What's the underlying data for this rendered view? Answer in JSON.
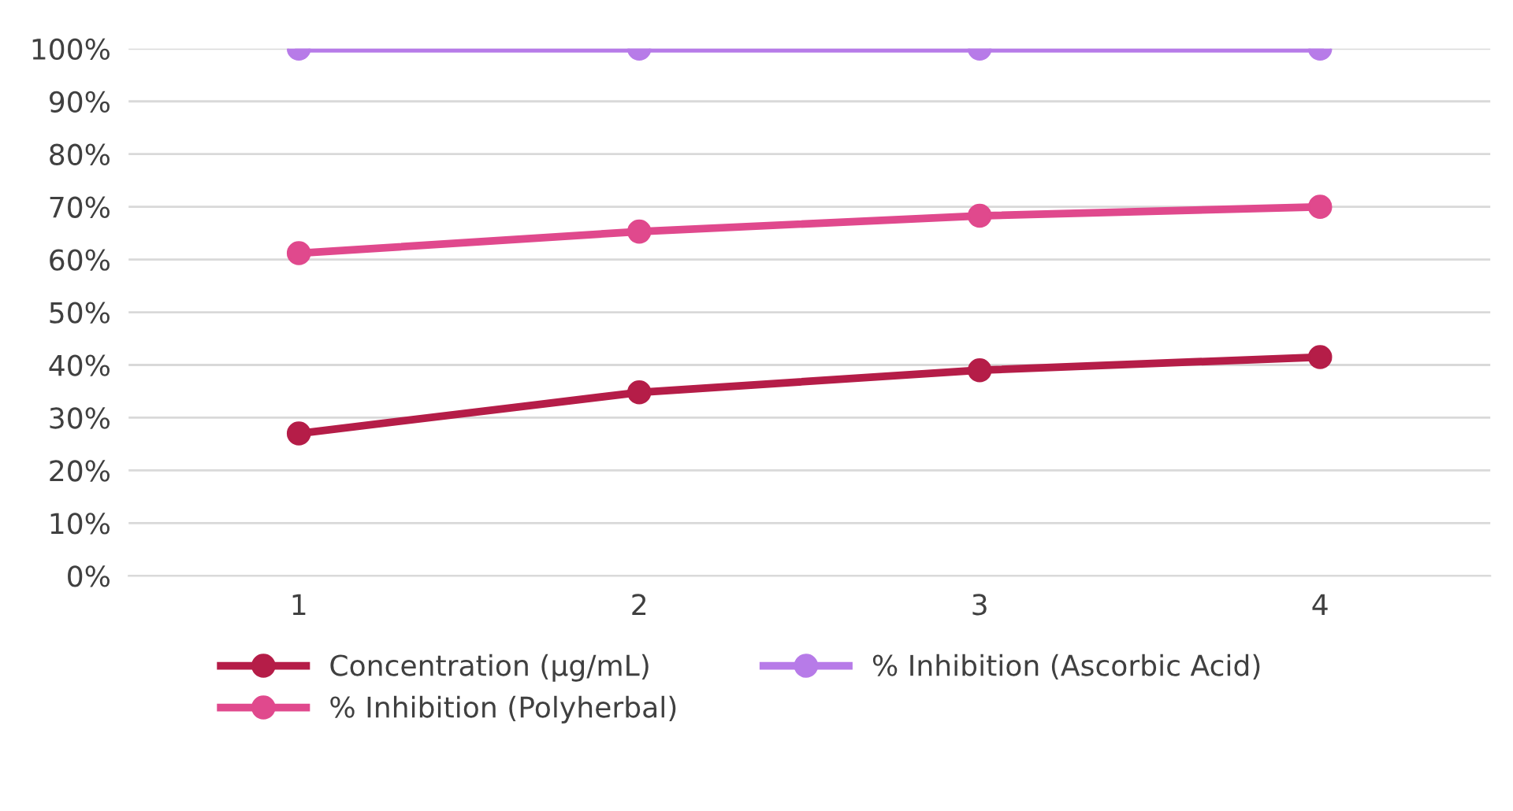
{
  "chart_data": {
    "type": "line",
    "categories": [
      "1",
      "2",
      "3",
      "4"
    ],
    "series": [
      {
        "name": "Concentration (µg/mL)",
        "color": "#b51d48",
        "values": [
          27,
          34.8,
          39,
          41.5
        ]
      },
      {
        "name": "% Inhibition (Polyherbal)",
        "color": "#e0498d",
        "values": [
          61.2,
          65.3,
          68.3,
          70
        ]
      },
      {
        "name": "% Inhibition (Ascorbic Acid)",
        "color": "#b77be8",
        "values": [
          100,
          100,
          100,
          100
        ]
      }
    ],
    "ylim": [
      0,
      100
    ],
    "yticks": [
      {
        "value": 0,
        "label": "0%"
      },
      {
        "value": 10,
        "label": "10%"
      },
      {
        "value": 20,
        "label": "20%"
      },
      {
        "value": 30,
        "label": "30%"
      },
      {
        "value": 40,
        "label": "40%"
      },
      {
        "value": 50,
        "label": "50%"
      },
      {
        "value": 60,
        "label": "60%"
      },
      {
        "value": 70,
        "label": "70%"
      },
      {
        "value": 80,
        "label": "80%"
      },
      {
        "value": 90,
        "label": "90%"
      },
      {
        "value": 100,
        "label": "100%"
      }
    ],
    "grid": "y",
    "legend": "bottom",
    "marker": "circle",
    "line_style": "solid"
  }
}
